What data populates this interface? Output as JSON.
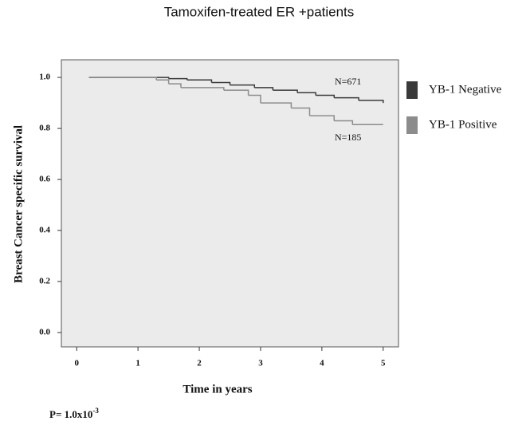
{
  "chart_data": {
    "type": "step",
    "title": "Tamoxifen-treated ER +patients",
    "x_label": "Time in years",
    "y_label": "Breast Cancer specific survival",
    "xlim": [
      -0.25,
      5.25
    ],
    "ylim": [
      -0.056,
      1.069
    ],
    "xticks": [
      0,
      1,
      2,
      3,
      4,
      5
    ],
    "yticks": [
      {
        "value": 0,
        "label": "0.0"
      },
      0.2,
      0.4,
      0.6,
      0.8,
      {
        "value": 1,
        "label": "1.0"
      }
    ],
    "series": [
      {
        "name": "YB-1 Negative",
        "color": "#3a3a3a",
        "annotation": "N=671",
        "x": [
          0.2,
          1.5,
          1.8,
          2.2,
          2.5,
          2.9,
          3.2,
          3.6,
          3.9,
          4.2,
          4.6,
          5.0
        ],
        "values": [
          1.0,
          0.995,
          0.99,
          0.98,
          0.97,
          0.96,
          0.95,
          0.94,
          0.93,
          0.92,
          0.91,
          0.9
        ]
      },
      {
        "name": "YB-1 Positive",
        "color": "#8c8c8c",
        "annotation": "N=185",
        "x": [
          0.2,
          1.3,
          1.5,
          1.7,
          2.4,
          2.8,
          3.0,
          3.5,
          3.8,
          4.2,
          4.5,
          5.0
        ],
        "values": [
          1.0,
          0.99,
          0.975,
          0.96,
          0.95,
          0.93,
          0.9,
          0.88,
          0.85,
          0.83,
          0.815,
          0.815
        ]
      }
    ],
    "p_value": {
      "text": "P= 1.0x10",
      "exponent": "-3"
    }
  }
}
